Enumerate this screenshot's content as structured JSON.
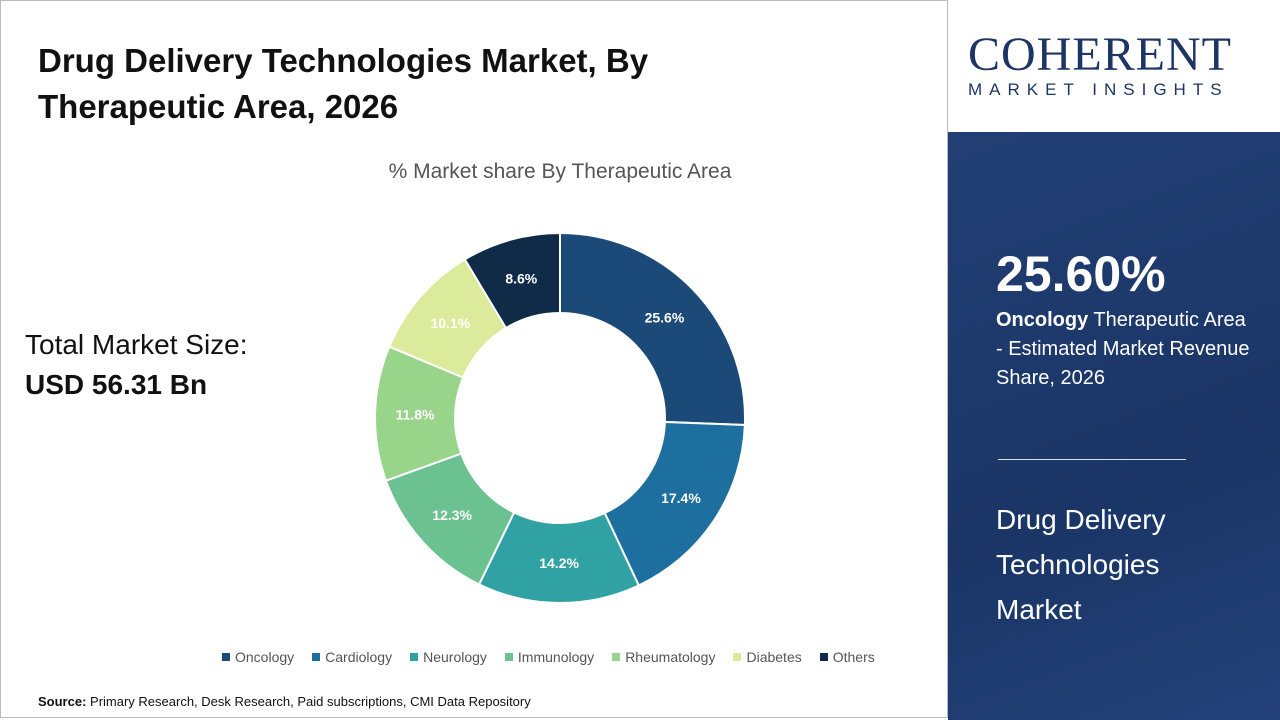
{
  "title": "Drug Delivery Technologies Market, By Therapeutic Area, 2026",
  "total": {
    "label": "Total Market Size:",
    "value": "USD 56.31 Bn"
  },
  "source": {
    "label": "Source:",
    "text": "Primary Research, Desk Research, Paid subscriptions, CMI Data Repository"
  },
  "logo": {
    "name": "COHERENT",
    "tagline": "MARKET INSIGHTS"
  },
  "highlight": {
    "value": "25.60%",
    "bold": "Oncology",
    "text": " Therapeutic Area - Estimated Market Revenue Share, 2026",
    "market": "Drug Delivery Technologies Market"
  },
  "chart_data": {
    "type": "donut",
    "title": "% Market share By Therapeutic Area",
    "legend_position": "bottom",
    "categories": [
      "Oncology",
      "Cardiology",
      "Neurology",
      "Immunology",
      "Rheumatology",
      "Diabetes",
      "Others"
    ],
    "values": [
      25.6,
      17.4,
      14.2,
      12.3,
      11.8,
      10.1,
      8.6
    ],
    "labels": [
      "25.6%",
      "17.4%",
      "14.2%",
      "12.3%",
      "11.8%",
      "10.1%",
      "8.6%"
    ],
    "colors": [
      "#1b4a78",
      "#1c6f9f",
      "#30a2a4",
      "#6cc190",
      "#98d48a",
      "#dcea9b",
      "#0f2b47"
    ]
  }
}
